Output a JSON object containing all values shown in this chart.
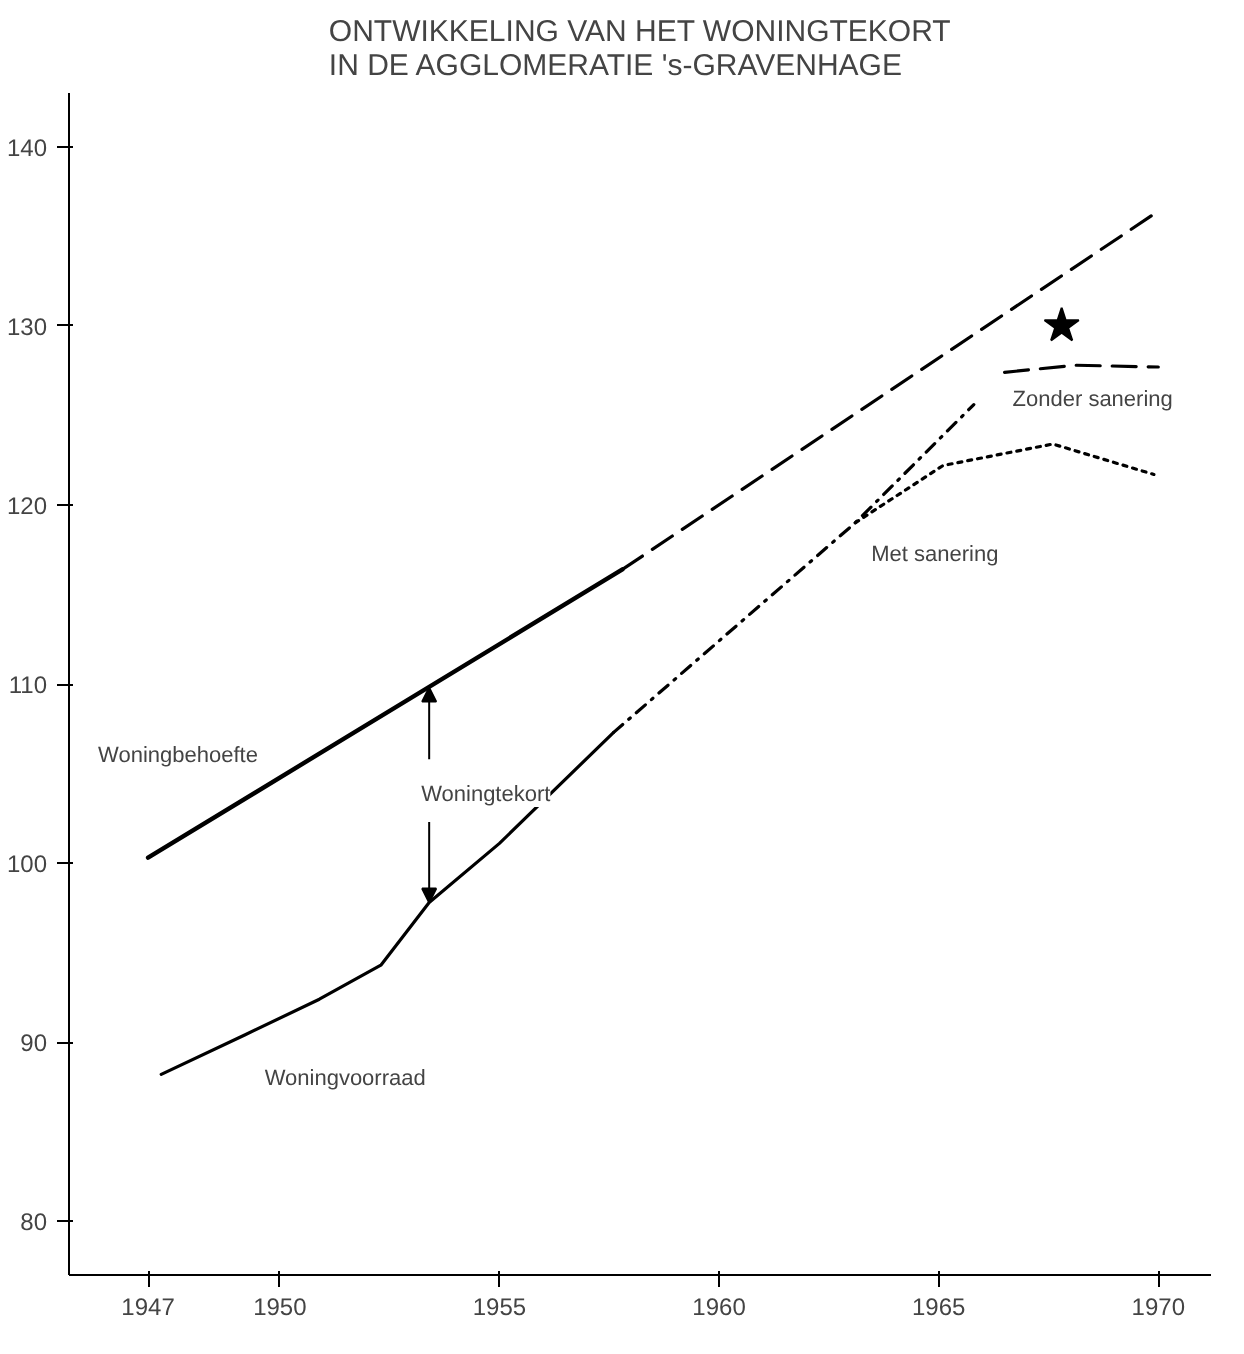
{
  "chart_data": {
    "type": "line",
    "title": "ONTWIKKELING VAN HET WONINGTEKORT\nIN DE  AGGLOMERATIE 's-GRAVENHAGE",
    "xlim": [
      1945.2,
      1971.2
    ],
    "ylim": [
      77,
      143
    ],
    "xticks": [
      1947,
      1950,
      1955,
      1960,
      1965,
      1970
    ],
    "yticks": [
      80,
      90,
      100,
      110,
      120,
      130,
      140
    ],
    "grid": false,
    "series": [
      {
        "name": "Woningbehoefte",
        "line_style": "solid",
        "color": "#000000",
        "x": [
          1947,
          1957.8
        ],
        "values": [
          100.3,
          116.4
        ]
      },
      {
        "line_style": "dashed",
        "color": "#000000",
        "x": [
          1957.8,
          1970
        ],
        "values": [
          116.4,
          136.4
        ]
      },
      {
        "name": "Woningvoorraad",
        "line_style": "solid",
        "color": "#000000",
        "x": [
          1947.3,
          1949.2,
          1950.9,
          1952.3,
          1953.4,
          1955,
          1957.6
        ],
        "values": [
          88.2,
          90.4,
          92.4,
          94.3,
          97.8,
          101.1,
          107.3
        ]
      },
      {
        "line_style": "dashdot",
        "color": "#000000",
        "x": [
          1957.6,
          1963.1,
          1965.8
        ],
        "values": [
          107.3,
          119,
          125.6
        ]
      },
      {
        "name": "Zonder sanering",
        "line_style": "dashed",
        "color": "#000000",
        "x": [
          1966.5,
          1968.1,
          1970
        ],
        "values": [
          127.4,
          127.8,
          127.7
        ]
      },
      {
        "name": "Met sanering",
        "line_style": "dotted",
        "color": "#000000",
        "x": [
          1963.1,
          1965.1,
          1967.6,
          1969.9
        ],
        "values": [
          119,
          122.2,
          123.4,
          121.7
        ]
      },
      {
        "type": "scatter",
        "marker": "star",
        "color": "#000000",
        "x": [
          1967.8
        ],
        "values": [
          130
        ]
      }
    ],
    "annotations": [
      {
        "text": "Woningtekort",
        "x": 1953.4,
        "y": 109.8
      }
    ]
  }
}
